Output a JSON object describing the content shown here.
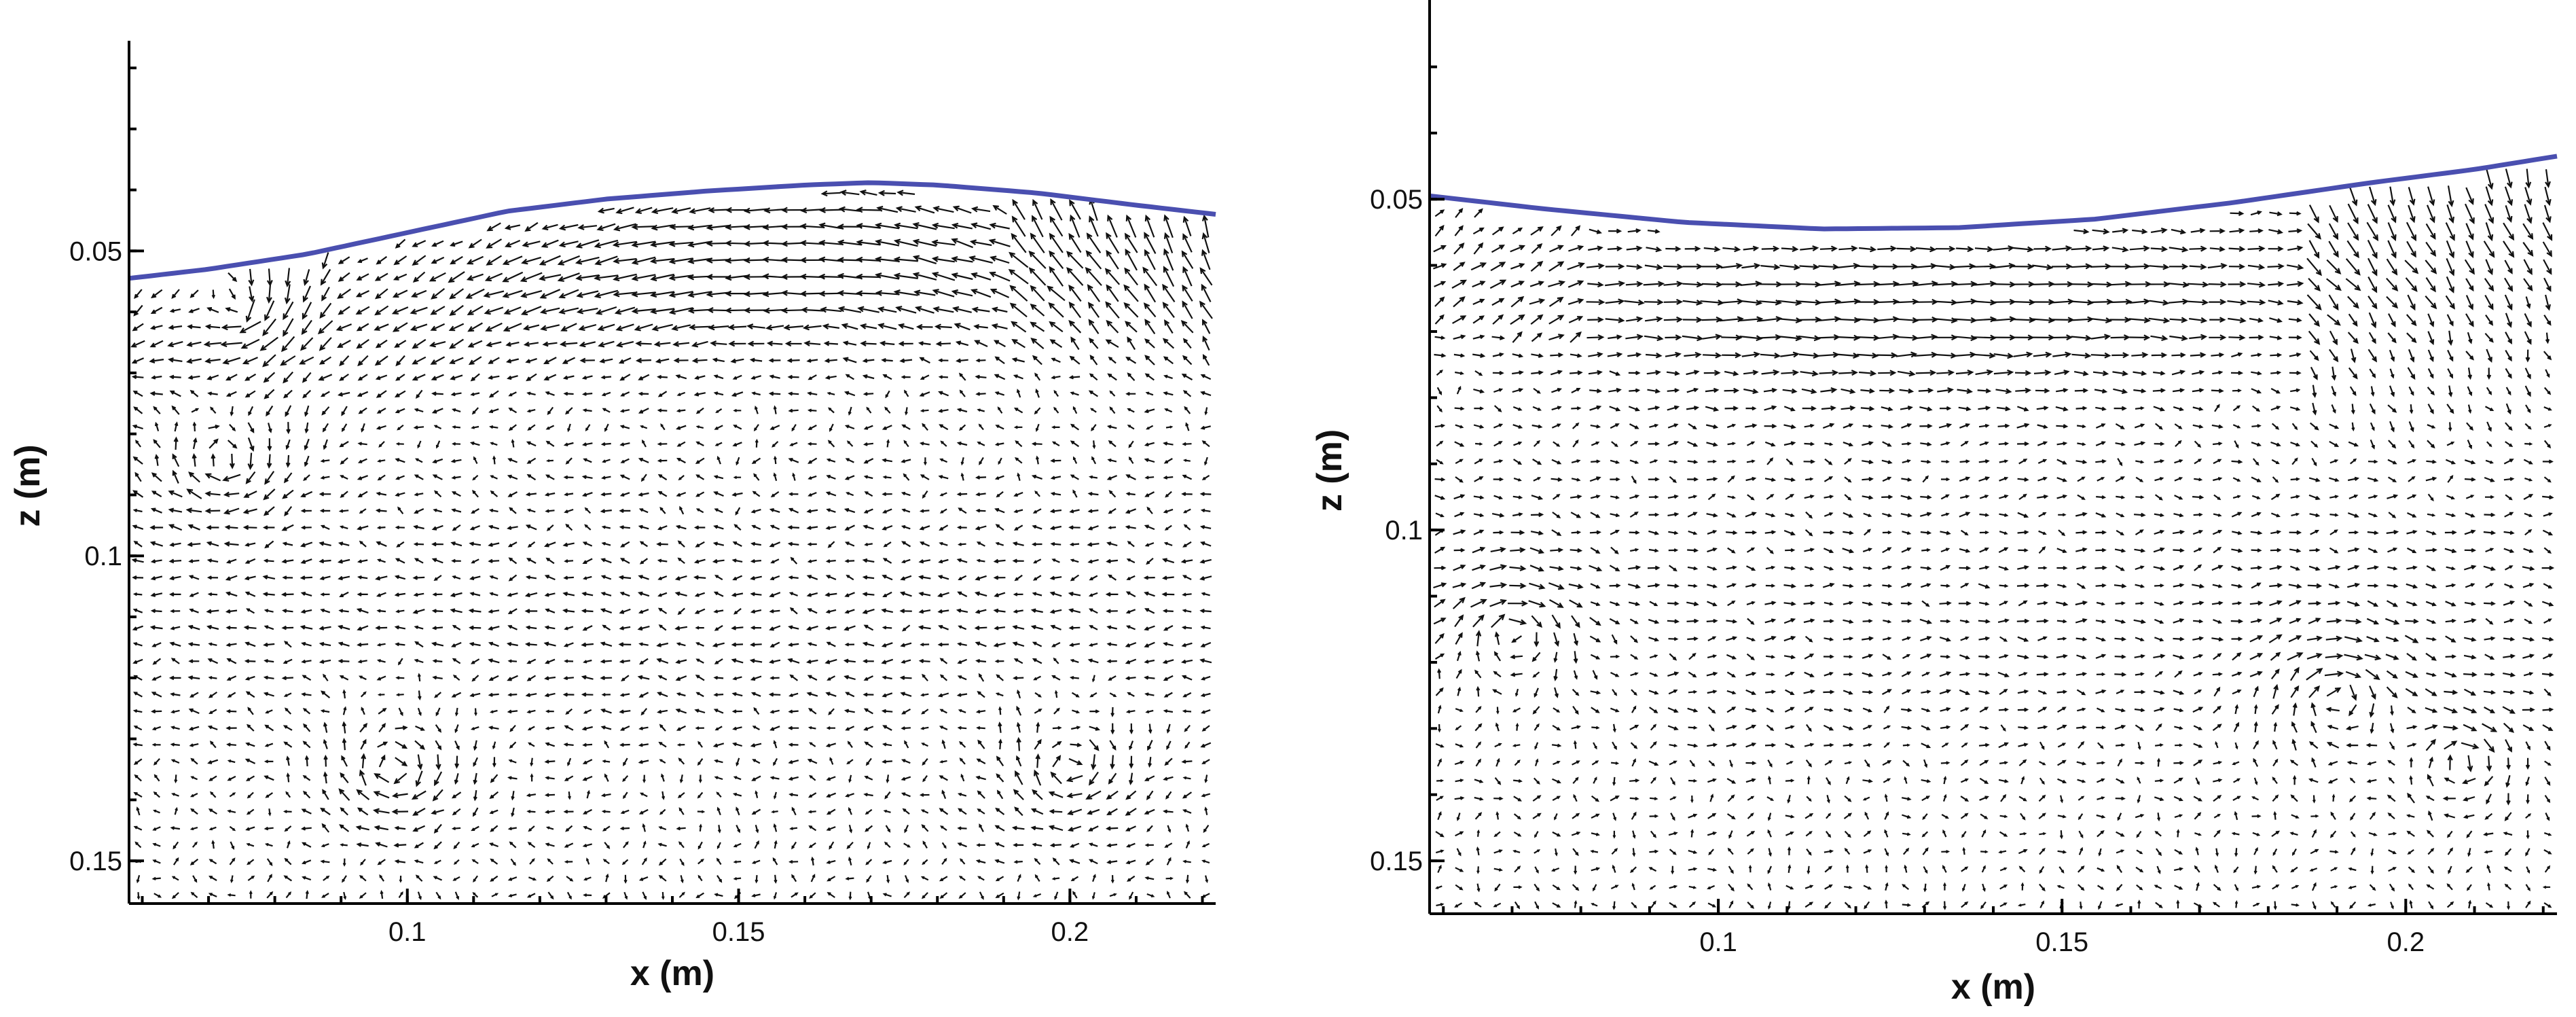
{
  "chart_data": [
    {
      "type": "vector-field",
      "title": "",
      "xlabel": "x (m)",
      "ylabel": "z (m)",
      "xlim": [
        0.058,
        0.222
      ],
      "ylim": [
        0.157,
        0.02
      ],
      "y_inverted": true,
      "x_ticks": [
        0.1,
        0.15,
        0.2
      ],
      "x_tick_labels": [
        "0.1",
        "0.15",
        "0.2"
      ],
      "y_ticks": [
        0.05,
        0.1,
        0.15
      ],
      "y_tick_labels": [
        "0.05",
        "0.1",
        "0.15"
      ],
      "free_surface": {
        "color": "#4a4fb0",
        "x": [
          0.058,
          0.07,
          0.085,
          0.1,
          0.115,
          0.13,
          0.145,
          0.16,
          0.17,
          0.18,
          0.195,
          0.21,
          0.222
        ],
        "z": [
          0.0545,
          0.053,
          0.0505,
          0.047,
          0.0435,
          0.0415,
          0.0402,
          0.0392,
          0.0388,
          0.0392,
          0.0405,
          0.0425,
          0.044
        ]
      },
      "vector_field_pattern": "wave crest with strong horizontal flow to the left near the surface (x 0.12–0.19, z 0.04–0.07), recirculating eddies near x 0.07, 0.1 and 0.2 at depth",
      "grid": false
    },
    {
      "type": "vector-field",
      "title": "",
      "xlabel": "x (m)",
      "ylabel": "z (m)",
      "xlim": [
        0.058,
        0.222
      ],
      "ylim": [
        0.158,
        0.024
      ],
      "y_inverted": true,
      "x_ticks": [
        0.1,
        0.15,
        0.2
      ],
      "x_tick_labels": [
        "0.1",
        "0.15",
        "0.2"
      ],
      "y_ticks": [
        0.05,
        0.1,
        0.15
      ],
      "y_tick_labels": [
        "0.05",
        "0.1",
        "0.15"
      ],
      "free_surface": {
        "color": "#4a4fb0",
        "x": [
          0.058,
          0.075,
          0.095,
          0.115,
          0.135,
          0.155,
          0.175,
          0.195,
          0.21,
          0.222
        ],
        "z": [
          0.0495,
          0.0515,
          0.0535,
          0.0545,
          0.0543,
          0.053,
          0.0505,
          0.0475,
          0.0455,
          0.0435
        ]
      },
      "vector_field_pattern": "wave trough with horizontal flow to the right near the surface (x 0.08–0.18, z 0.055–0.075), eddies near x 0.19 and 0.21 at depth",
      "grid": false
    }
  ]
}
